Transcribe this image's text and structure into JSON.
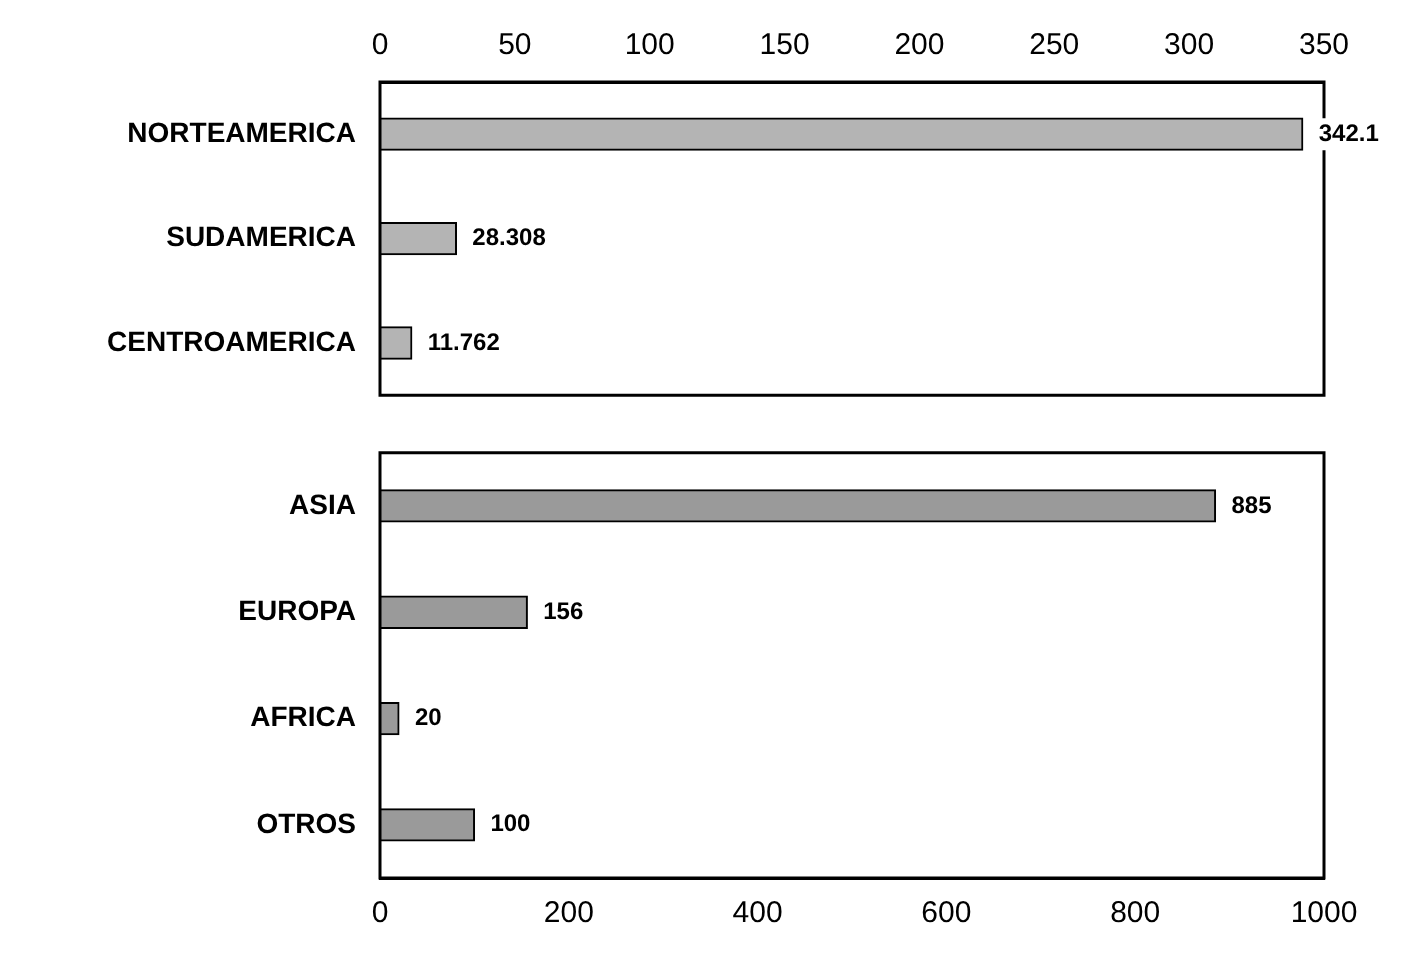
{
  "chart_data": [
    {
      "type": "bar",
      "orientation": "horizontal",
      "categories": [
        "NORTEAMERICA",
        "SUDAMERICA",
        "CENTROAMERICA"
      ],
      "values": [
        342.1,
        28.308,
        11.762
      ],
      "color": "#b4b4b4",
      "xlim": [
        0,
        350
      ],
      "xticks": [
        0,
        50,
        100,
        150,
        200,
        250,
        300,
        350
      ],
      "data_labels": true
    },
    {
      "type": "bar",
      "orientation": "horizontal",
      "categories": [
        "ASIA",
        "EUROPA",
        "AFRICA",
        "OTROS"
      ],
      "values": [
        885,
        156,
        20,
        100
      ],
      "color": "#9a9a9a",
      "xlim": [
        0,
        1000
      ],
      "xticks": [
        0,
        200,
        400,
        600,
        800,
        1000
      ],
      "data_labels": true
    }
  ]
}
